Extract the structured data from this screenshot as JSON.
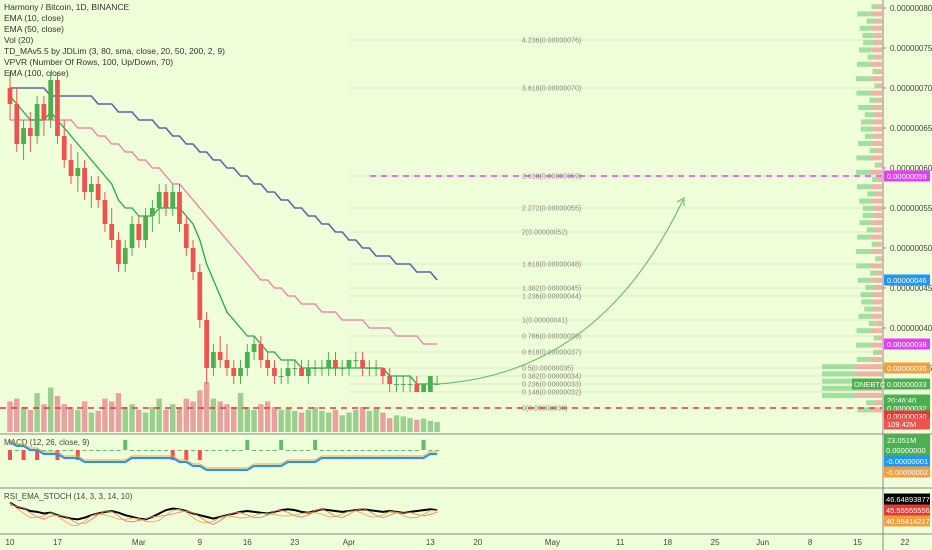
{
  "header": {
    "title": "Harmony / Bitcoin, 1D, BINANCE",
    "indicators": [
      "EMA (10, close)",
      "EMA (50, close)",
      "Vol (20)",
      "TD_MAv5.5 by JDLim (3, 80, sma, close, 20, 50, 200, 2, 9)",
      "VPVR (Number Of Rows, 100, Up/Down, 70)",
      "EMA (100, close)"
    ]
  },
  "colors": {
    "background": "#efffd9",
    "up": "#4caf50",
    "down": "#ef5350",
    "ema10": "#22a84a",
    "ema50": "#e88bb0",
    "ema100": "#5566aa",
    "support": "#e53935",
    "target": "#e040fb",
    "arrow": "#66bb6a",
    "fib_text": "#888888",
    "fib_highlight": "#f0a040"
  },
  "chart_data": {
    "type": "candlestick",
    "symbol": "ONEBTC",
    "price_axis_ticks": [
      "0.00000080",
      "0.00000075",
      "0.00000070",
      "0.00000065",
      "0.00000060",
      "0.00000055",
      "0.00000050",
      "0.00000045",
      "0.00000040",
      "0.00000035"
    ],
    "time_axis_ticks": [
      {
        "label": "10",
        "day": 0
      },
      {
        "label": "17",
        "day": 7
      },
      {
        "label": "Mar",
        "day": 19
      },
      {
        "label": "9",
        "day": 28
      },
      {
        "label": "16",
        "day": 35
      },
      {
        "label": "23",
        "day": 42
      },
      {
        "label": "Apr",
        "day": 50
      },
      {
        "label": "13",
        "day": 62
      },
      {
        "label": "20",
        "day": 69
      },
      {
        "label": "May",
        "day": 80
      },
      {
        "label": "11",
        "day": 90
      },
      {
        "label": "18",
        "day": 97
      },
      {
        "label": "25",
        "day": 104
      },
      {
        "label": "Jun",
        "day": 111
      },
      {
        "label": "8",
        "day": 118
      },
      {
        "label": "15",
        "day": 125
      },
      {
        "label": "22",
        "day": 132
      }
    ],
    "ohlc": [
      [
        7e-07,
        7.2e-07,
        6.6e-07,
        6.8e-07
      ],
      [
        6.8e-07,
        7e-07,
        6.2e-07,
        6.3e-07
      ],
      [
        6.3e-07,
        6.6e-07,
        6.1e-07,
        6.5e-07
      ],
      [
        6.5e-07,
        6.7e-07,
        6.2e-07,
        6.4e-07
      ],
      [
        6.4e-07,
        6.9e-07,
        6.3e-07,
        6.8e-07
      ],
      [
        6.8e-07,
        6.9e-07,
        6.4e-07,
        6.6e-07
      ],
      [
        6.6e-07,
        7.2e-07,
        6.5e-07,
        7.1e-07
      ],
      [
        7.1e-07,
        7.2e-07,
        6.3e-07,
        6.4e-07
      ],
      [
        6.4e-07,
        6.6e-07,
        6e-07,
        6.1e-07
      ],
      [
        6.1e-07,
        6.3e-07,
        5.8e-07,
        5.9e-07
      ],
      [
        5.9e-07,
        6.2e-07,
        5.7e-07,
        6e-07
      ],
      [
        6e-07,
        6.1e-07,
        5.6e-07,
        5.7e-07
      ],
      [
        5.7e-07,
        5.9e-07,
        5.5e-07,
        5.8e-07
      ],
      [
        5.8e-07,
        5.9e-07,
        5.5e-07,
        5.6e-07
      ],
      [
        5.6e-07,
        5.7e-07,
        5.2e-07,
        5.3e-07
      ],
      [
        5.3e-07,
        5.5e-07,
        5e-07,
        5.1e-07
      ],
      [
        5.1e-07,
        5.2e-07,
        4.7e-07,
        4.8e-07
      ],
      [
        4.8e-07,
        5.1e-07,
        4.7e-07,
        5e-07
      ],
      [
        5e-07,
        5.4e-07,
        4.9e-07,
        5.3e-07
      ],
      [
        5.3e-07,
        5.4e-07,
        5e-07,
        5.1e-07
      ],
      [
        5.1e-07,
        5.5e-07,
        5e-07,
        5.4e-07
      ],
      [
        5.4e-07,
        5.6e-07,
        5.2e-07,
        5.5e-07
      ],
      [
        5.5e-07,
        5.8e-07,
        5.3e-07,
        5.7e-07
      ],
      [
        5.7e-07,
        5.8e-07,
        5.4e-07,
        5.5e-07
      ],
      [
        5.5e-07,
        5.8e-07,
        5.4e-07,
        5.7e-07
      ],
      [
        5.7e-07,
        5.8e-07,
        5.2e-07,
        5.3e-07
      ],
      [
        5.3e-07,
        5.4e-07,
        4.9e-07,
        5e-07
      ],
      [
        5e-07,
        5.1e-07,
        4.6e-07,
        4.7e-07
      ],
      [
        4.7e-07,
        4.8e-07,
        4e-07,
        4.1e-07
      ],
      [
        4.1e-07,
        4.2e-07,
        3.3e-07,
        3.5e-07
      ],
      [
        3.5e-07,
        3.8e-07,
        3.4e-07,
        3.7e-07
      ],
      [
        3.7e-07,
        3.9e-07,
        3.5e-07,
        3.6e-07
      ],
      [
        3.6e-07,
        3.8e-07,
        3.4e-07,
        3.5e-07
      ],
      [
        3.5e-07,
        3.6e-07,
        3.3e-07,
        3.4e-07
      ],
      [
        3.4e-07,
        3.6e-07,
        3.3e-07,
        3.5e-07
      ],
      [
        3.5e-07,
        3.8e-07,
        3.4e-07,
        3.7e-07
      ],
      [
        3.7e-07,
        3.9e-07,
        3.6e-07,
        3.8e-07
      ],
      [
        3.8e-07,
        3.9e-07,
        3.5e-07,
        3.6e-07
      ],
      [
        3.6e-07,
        3.7e-07,
        3.4e-07,
        3.5e-07
      ],
      [
        3.5e-07,
        3.6e-07,
        3.3e-07,
        3.4e-07
      ],
      [
        3.4e-07,
        3.5e-07,
        3.3e-07,
        3.4e-07
      ],
      [
        3.4e-07,
        3.6e-07,
        3.3e-07,
        3.5e-07
      ],
      [
        3.5e-07,
        3.6e-07,
        3.4e-07,
        3.5e-07
      ],
      [
        3.5e-07,
        3.6e-07,
        3.4e-07,
        3.4e-07
      ],
      [
        3.4e-07,
        3.6e-07,
        3.3e-07,
        3.5e-07
      ],
      [
        3.5e-07,
        3.6e-07,
        3.4e-07,
        3.5e-07
      ],
      [
        3.5e-07,
        3.6e-07,
        3.4e-07,
        3.5e-07
      ],
      [
        3.5e-07,
        3.7e-07,
        3.4e-07,
        3.6e-07
      ],
      [
        3.6e-07,
        3.7e-07,
        3.4e-07,
        3.5e-07
      ],
      [
        3.5e-07,
        3.6e-07,
        3.4e-07,
        3.5e-07
      ],
      [
        3.5e-07,
        3.6e-07,
        3.4e-07,
        3.6e-07
      ],
      [
        3.6e-07,
        3.7e-07,
        3.5e-07,
        3.6e-07
      ],
      [
        3.6e-07,
        3.7e-07,
        3.4e-07,
        3.5e-07
      ],
      [
        3.5e-07,
        3.6e-07,
        3.4e-07,
        3.5e-07
      ],
      [
        3.5e-07,
        3.6e-07,
        3.4e-07,
        3.5e-07
      ],
      [
        3.5e-07,
        3.5e-07,
        3.3e-07,
        3.4e-07
      ],
      [
        3.4e-07,
        3.5e-07,
        3.2e-07,
        3.3e-07
      ],
      [
        3.3e-07,
        3.4e-07,
        3.2e-07,
        3.3e-07
      ],
      [
        3.3e-07,
        3.4e-07,
        3.2e-07,
        3.3e-07
      ],
      [
        3.3e-07,
        3.4e-07,
        3.2e-07,
        3.3e-07
      ],
      [
        3.3e-07,
        3.4e-07,
        3.2e-07,
        3.2e-07
      ],
      [
        3.2e-07,
        3.3e-07,
        3.2e-07,
        3.3e-07
      ],
      [
        3.2e-07,
        3.4e-07,
        3.2e-07,
        3.4e-07
      ],
      [
        3.3e-07,
        3.4e-07,
        3.3e-07,
        3.3e-07
      ]
    ],
    "volume": [
      55,
      60,
      45,
      40,
      70,
      50,
      80,
      65,
      50,
      45,
      40,
      55,
      35,
      38,
      60,
      55,
      70,
      45,
      50,
      40,
      35,
      45,
      60,
      40,
      50,
      45,
      60,
      55,
      75,
      90,
      60,
      55,
      50,
      45,
      70,
      45,
      40,
      50,
      55,
      45,
      40,
      42,
      38,
      35,
      40,
      45,
      38,
      35,
      40,
      30,
      35,
      40,
      45,
      38,
      42,
      35,
      25,
      30,
      28,
      25,
      22,
      24,
      20,
      18
    ],
    "ema10": [
      6.9e-07,
      6.8e-07,
      6.7e-07,
      6.6e-07,
      6.6e-07,
      6.6e-07,
      6.7e-07,
      6.6e-07,
      6.5e-07,
      6.4e-07,
      6.3e-07,
      6.2e-07,
      6.1e-07,
      6e-07,
      5.9e-07,
      5.8e-07,
      5.6e-07,
      5.5e-07,
      5.5e-07,
      5.4e-07,
      5.4e-07,
      5.4e-07,
      5.5e-07,
      5.5e-07,
      5.5e-07,
      5.5e-07,
      5.4e-07,
      5.3e-07,
      5.1e-07,
      4.8e-07,
      4.6e-07,
      4.4e-07,
      4.2e-07,
      4.1e-07,
      4e-07,
      3.9e-07,
      3.9e-07,
      3.8e-07,
      3.7e-07,
      3.7e-07,
      3.6e-07,
      3.6e-07,
      3.6e-07,
      3.5e-07,
      3.5e-07,
      3.5e-07,
      3.5e-07,
      3.5e-07,
      3.5e-07,
      3.5e-07,
      3.5e-07,
      3.5e-07,
      3.5e-07,
      3.5e-07,
      3.5e-07,
      3.5e-07,
      3.4e-07,
      3.4e-07,
      3.4e-07,
      3.4e-07,
      3.3e-07,
      3.3e-07,
      3.3e-07,
      3.3e-07
    ],
    "ema50": [
      6.6e-07,
      6.6e-07,
      6.6e-07,
      6.6e-07,
      6.6e-07,
      6.6e-07,
      6.6e-07,
      6.6e-07,
      6.6e-07,
      6.6e-07,
      6.5e-07,
      6.5e-07,
      6.5e-07,
      6.4e-07,
      6.4e-07,
      6.3e-07,
      6.3e-07,
      6.2e-07,
      6.2e-07,
      6.1e-07,
      6.1e-07,
      6e-07,
      6e-07,
      5.9e-07,
      5.8e-07,
      5.8e-07,
      5.7e-07,
      5.6e-07,
      5.5e-07,
      5.4e-07,
      5.3e-07,
      5.2e-07,
      5.1e-07,
      5e-07,
      4.9e-07,
      4.8e-07,
      4.7e-07,
      4.6e-07,
      4.6e-07,
      4.5e-07,
      4.5e-07,
      4.4e-07,
      4.4e-07,
      4.3e-07,
      4.3e-07,
      4.3e-07,
      4.2e-07,
      4.2e-07,
      4.2e-07,
      4.1e-07,
      4.1e-07,
      4.1e-07,
      4.1e-07,
      4e-07,
      4e-07,
      4e-07,
      4e-07,
      3.9e-07,
      3.9e-07,
      3.9e-07,
      3.9e-07,
      3.8e-07,
      3.8e-07,
      3.8e-07
    ],
    "ema100": [
      7e-07,
      7e-07,
      7e-07,
      7e-07,
      7e-07,
      7e-07,
      6.9e-07,
      6.9e-07,
      6.9e-07,
      6.9e-07,
      6.9e-07,
      6.9e-07,
      6.9e-07,
      6.8e-07,
      6.8e-07,
      6.8e-07,
      6.7e-07,
      6.7e-07,
      6.7e-07,
      6.6e-07,
      6.6e-07,
      6.6e-07,
      6.5e-07,
      6.5e-07,
      6.4e-07,
      6.4e-07,
      6.3e-07,
      6.3e-07,
      6.2e-07,
      6.2e-07,
      6.1e-07,
      6.1e-07,
      6e-07,
      6e-07,
      5.9e-07,
      5.9e-07,
      5.8e-07,
      5.8e-07,
      5.7e-07,
      5.7e-07,
      5.6e-07,
      5.6e-07,
      5.5e-07,
      5.5e-07,
      5.4e-07,
      5.4e-07,
      5.3e-07,
      5.3e-07,
      5.2e-07,
      5.2e-07,
      5.1e-07,
      5.1e-07,
      5e-07,
      5e-07,
      4.9e-07,
      4.9e-07,
      4.9e-07,
      4.8e-07,
      4.8e-07,
      4.8e-07,
      4.7e-07,
      4.7e-07,
      4.7e-07,
      4.6e-07
    ],
    "fib_levels": [
      {
        "label": "4.236(0.00000076)",
        "price": 7.6e-07,
        "highlight": false
      },
      {
        "label": "3.618(0.00000070)",
        "price": 7e-07,
        "highlight": false
      },
      {
        "label": "2.618(0.00000059)",
        "price": 5.9e-07,
        "highlight": true
      },
      {
        "label": "2.272(0.00000055)",
        "price": 5.5e-07,
        "highlight": false
      },
      {
        "label": "2(0.00000052)",
        "price": 5.2e-07,
        "highlight": false
      },
      {
        "label": "1.618(0.00000048)",
        "price": 4.8e-07,
        "highlight": true
      },
      {
        "label": "1.382(0.00000045)",
        "price": 4.5e-07,
        "highlight": false
      },
      {
        "label": "1.236(0.00000044)",
        "price": 4.4e-07,
        "highlight": false
      },
      {
        "label": "1(0.00000041)",
        "price": 4.1e-07,
        "highlight": false
      },
      {
        "label": "0.786(0.00000039)",
        "price": 3.9e-07,
        "highlight": true
      },
      {
        "label": "0.618(0.00000037)",
        "price": 3.7e-07,
        "highlight": false
      },
      {
        "label": "0.5(0.00000035)",
        "price": 3.5e-07,
        "highlight": false
      },
      {
        "label": "0.382(0.00000034)",
        "price": 3.4e-07,
        "highlight": false
      },
      {
        "label": "0.236(0.00000033)",
        "price": 3.3e-07,
        "highlight": false
      },
      {
        "label": "0.146(0.00000032)",
        "price": 3.2e-07,
        "highlight": false
      },
      {
        "label": "0(0.00000030)",
        "price": 3e-07,
        "highlight": false
      }
    ],
    "price_tags": [
      {
        "label": "0.00000059",
        "price": 5.9e-07,
        "color": "#e040fb"
      },
      {
        "label": "0.00000046",
        "price": 4.6e-07,
        "color": "#2196f3"
      },
      {
        "label": "0.00000038",
        "price": 3.8e-07,
        "color": "#e040fb"
      },
      {
        "label": "0.00000035",
        "price": 3.5e-07,
        "color": "#f0a040"
      },
      {
        "label": "0.00000033",
        "price": 3.3e-07,
        "color": "#4caf50"
      },
      {
        "label": "20:46:40",
        "price": 3.1e-07,
        "color": "#4caf50"
      },
      {
        "label": "0.00000032",
        "price": 3e-07,
        "color": "#4caf50"
      },
      {
        "label": "0.00000030",
        "price": 2.9e-07,
        "color": "#e53935"
      },
      {
        "label": "109.42M",
        "price": 2.8e-07,
        "color": "#ef5350"
      },
      {
        "label": "23.051M",
        "price": 2.6e-07,
        "color": "#4caf50"
      }
    ],
    "symbol_tag": "ONEBTC",
    "support_price": 3e-07,
    "target_price": 5.9e-07,
    "current_price": 3.3e-07,
    "macd": {
      "label": "MACD (12, 26, close, 9)",
      "values": [
        2e-08,
        1e-08,
        1e-08,
        0.0,
        0.0,
        -1e-08,
        -1e-08,
        -1e-08,
        -2e-08,
        -2e-08,
        -2e-08,
        -3e-08,
        -3e-08,
        -3e-08,
        -3e-08,
        -3e-08,
        -3e-08,
        -3e-08,
        -2e-08,
        -2e-08,
        -2e-08,
        -2e-08,
        -2e-08,
        -2e-08,
        -2e-08,
        -3e-08,
        -3e-08,
        -4e-08,
        -4e-08,
        -5e-08,
        -5e-08,
        -5e-08,
        -5e-08,
        -5e-08,
        -5e-08,
        -5e-08,
        -4e-08,
        -4e-08,
        -4e-08,
        -4e-08,
        -4e-08,
        -3e-08,
        -3e-08,
        -3e-08,
        -3e-08,
        -3e-08,
        -2e-08,
        -2e-08,
        -2e-08,
        -2e-08,
        -2e-08,
        -2e-08,
        -2e-08,
        -2e-08,
        -2e-08,
        -2e-08,
        -2e-08,
        -2e-08,
        -2e-08,
        -2e-08,
        -2e-08,
        -2e-08,
        -1e-08,
        -1e-08
      ],
      "tags": [
        {
          "label": "0.00000000",
          "color": "#4caf50"
        },
        {
          "label": "-0.00000001",
          "color": "#2196f3"
        },
        {
          "label": "-0.00000002",
          "color": "#f0a040"
        }
      ]
    },
    "rsi": {
      "label": "RSI_EMA_STOCH (14, 3, 3, 14, 10)",
      "values": [
        55,
        50,
        48,
        45,
        44,
        42,
        43,
        40,
        38,
        36,
        35,
        37,
        40,
        42,
        44,
        45,
        43,
        40,
        38,
        36,
        35,
        38,
        42,
        46,
        48,
        47,
        45,
        42,
        40,
        38,
        36,
        38,
        40,
        42,
        44,
        45,
        44,
        43,
        42,
        44,
        46,
        47,
        46,
        44,
        43,
        45,
        47,
        46,
        45,
        44,
        45,
        46,
        47,
        46,
        45,
        44,
        45,
        44,
        43,
        44,
        45,
        46,
        47,
        46
      ],
      "tags": [
        {
          "label": "46.64893877",
          "color": "#000000"
        },
        {
          "label": "45.55555556",
          "color": "#e53935"
        },
        {
          "label": "40.95414217",
          "color": "#f0a040"
        }
      ]
    }
  }
}
